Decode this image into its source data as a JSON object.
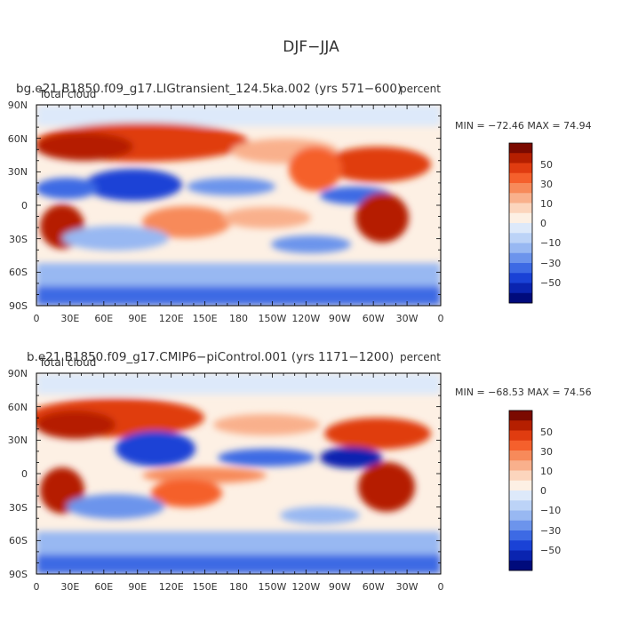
{
  "page": {
    "title": "DJF−JJA"
  },
  "chart_data": [
    {
      "type": "heatmap",
      "title": "bg.e21.B1850.f09_g17.LIGtransient_124.5ka.002 (yrs 571−600)",
      "subtitle_left": "Total cloud",
      "units": "percent",
      "min_max_label": "MIN = −72.46 MAX =  74.94",
      "min": -72.46,
      "max": 74.94,
      "xlim": [
        0,
        360
      ],
      "ylim": [
        -90,
        90
      ],
      "x_tick_labels": [
        "0",
        "30E",
        "60E",
        "90E",
        "120E",
        "150E",
        "180",
        "150W",
        "120W",
        "90W",
        "60W",
        "30W",
        "0"
      ],
      "y_tick_labels": [
        "90N",
        "60N",
        "30N",
        "0",
        "30S",
        "60S",
        "90S"
      ],
      "colorbar_labels": [
        "50",
        "30",
        "10",
        "0",
        "−10",
        "−30",
        "−50"
      ]
    },
    {
      "type": "heatmap",
      "title": "b.e21.B1850.f09_g17.CMIP6−piControl.001 (yrs 1171−1200)",
      "subtitle_left": "Total cloud",
      "units": "percent",
      "min_max_label": "MIN = −68.53 MAX =  74.56",
      "min": -68.53,
      "max": 74.56,
      "xlim": [
        0,
        360
      ],
      "ylim": [
        -90,
        90
      ],
      "x_tick_labels": [
        "0",
        "30E",
        "60E",
        "90E",
        "120E",
        "150E",
        "180",
        "150W",
        "120W",
        "90W",
        "60W",
        "30W",
        "0"
      ],
      "y_tick_labels": [
        "90N",
        "60N",
        "30N",
        "0",
        "30S",
        "60S",
        "90S"
      ],
      "colorbar_labels": [
        "50",
        "30",
        "10",
        "0",
        "−10",
        "−30",
        "−50"
      ]
    }
  ],
  "colors": {
    "ramp": [
      "#7b0a00",
      "#b51f00",
      "#e03c10",
      "#f5602c",
      "#f78a5a",
      "#f9b08c",
      "#fcd5bd",
      "#fdf0e4",
      "#dde9fa",
      "#bcd3f7",
      "#98b8f2",
      "#6c94ec",
      "#3d6ae4",
      "#1a42d6",
      "#0a24b0",
      "#000b7c"
    ]
  }
}
